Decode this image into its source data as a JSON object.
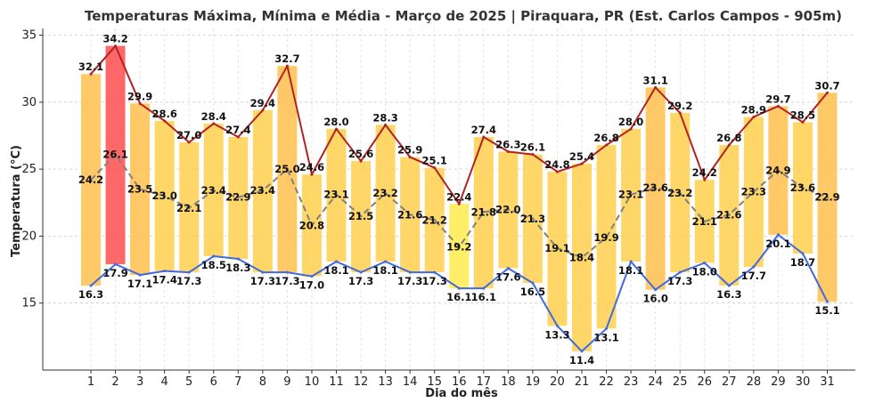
{
  "chart_data": {
    "type": "bar",
    "title": "Temperaturas Máxima, Mínima e Média - Março de 2025 | Piraquara, PR (Est. Carlos Campos - 905m)",
    "xlabel": "Dia do mês",
    "ylabel": "Temperatura (°C)",
    "ylim": [
      10,
      35.5
    ],
    "yticks": [
      15,
      20,
      25,
      30,
      35
    ],
    "grid": true,
    "categories": [
      "1",
      "2",
      "3",
      "4",
      "5",
      "6",
      "7",
      "8",
      "9",
      "10",
      "11",
      "12",
      "13",
      "14",
      "15",
      "16",
      "17",
      "18",
      "19",
      "20",
      "21",
      "22",
      "23",
      "24",
      "25",
      "26",
      "27",
      "28",
      "29",
      "30",
      "31"
    ],
    "series": [
      {
        "values": [
          32.1,
          34.2,
          29.9,
          28.6,
          27.0,
          28.4,
          27.4,
          29.4,
          32.7,
          24.6,
          28.0,
          25.6,
          28.3,
          25.9,
          25.1,
          22.4,
          27.4,
          26.3,
          26.1,
          24.8,
          25.4,
          26.8,
          28.0,
          31.1,
          29.2,
          24.2,
          26.8,
          28.9,
          29.7,
          28.5,
          30.7
        ]
      },
      {
        "values": [
          16.3,
          17.9,
          17.1,
          17.4,
          17.3,
          18.5,
          18.3,
          17.3,
          17.3,
          17.0,
          18.1,
          17.3,
          18.1,
          17.3,
          17.3,
          16.1,
          16.1,
          17.6,
          16.5,
          13.3,
          11.4,
          13.1,
          18.1,
          16.0,
          17.3,
          18.0,
          16.3,
          17.7,
          20.1,
          18.7,
          15.1
        ]
      },
      {
        "values": [
          24.2,
          26.1,
          23.5,
          23.0,
          22.1,
          23.4,
          22.9,
          23.4,
          25.0,
          20.8,
          23.1,
          21.5,
          23.2,
          21.6,
          21.2,
          19.2,
          21.8,
          22.0,
          21.3,
          19.1,
          18.4,
          19.9,
          23.1,
          23.6,
          23.2,
          21.1,
          21.6,
          23.3,
          24.9,
          23.6,
          22.9
        ]
      }
    ],
    "colors": {
      "max_line": "#b22222",
      "min_line": "#4169e1",
      "mean_line": "#808080",
      "bar_hot": "#ff4d4d",
      "bar_warm": "#ffc04d",
      "bar_mild": "#ffd04d",
      "bar_cool": "#ffeb4d"
    }
  }
}
